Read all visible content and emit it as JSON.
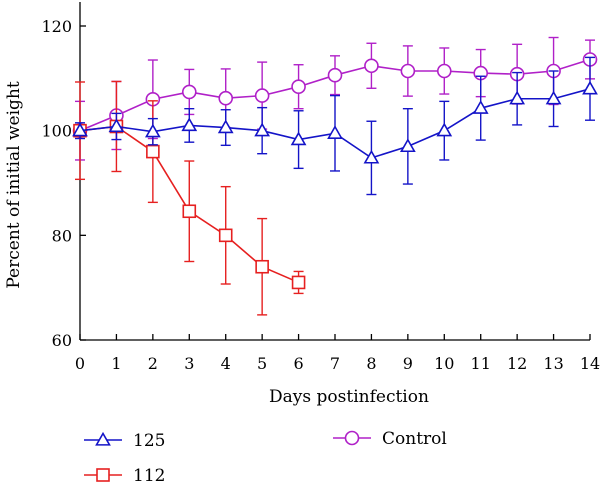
{
  "chart_data": {
    "type": "line",
    "title": "",
    "xlabel": "Days postinfection",
    "ylabel": "Percent of initial weight",
    "xlim": [
      0,
      14
    ],
    "ylim": [
      60,
      120
    ],
    "xticks": [
      0,
      1,
      2,
      3,
      4,
      5,
      6,
      7,
      8,
      9,
      10,
      11,
      12,
      13,
      14
    ],
    "yticks": [
      60,
      80,
      100,
      120
    ],
    "grid": false,
    "legend": "bottom",
    "series": [
      {
        "name": "125",
        "color": "#1414c8",
        "marker": "triangle",
        "x": [
          0,
          1,
          2,
          3,
          4,
          5,
          6,
          7,
          8,
          9,
          10,
          11,
          12,
          13,
          14
        ],
        "y": [
          100,
          100.8,
          99.8,
          101,
          100.6,
          100,
          98.3,
          99.5,
          94.8,
          97,
          100,
          104.3,
          106.1,
          106.1,
          108
        ],
        "err": [
          1.5,
          2.5,
          2.5,
          3.2,
          3.4,
          4.4,
          5.5,
          7.2,
          7,
          7.2,
          5.6,
          6.1,
          5,
          5.3,
          6
        ]
      },
      {
        "name": "112",
        "color": "#e62020",
        "marker": "square",
        "x": [
          0,
          1,
          2,
          3,
          4,
          5,
          6
        ],
        "y": [
          100,
          100.8,
          96,
          84.6,
          80,
          74,
          71
        ],
        "err": [
          9.3,
          8.6,
          9.7,
          9.6,
          9.3,
          9.2,
          2.1
        ]
      },
      {
        "name": "Control",
        "color": "#b020c8",
        "marker": "circle",
        "x": [
          0,
          1,
          2,
          3,
          4,
          5,
          6,
          7,
          8,
          9,
          10,
          11,
          12,
          13,
          14
        ],
        "y": [
          100,
          102.9,
          106,
          107.4,
          106.2,
          106.7,
          108.4,
          110.6,
          112.4,
          111.4,
          111.4,
          111,
          110.8,
          111.4,
          113.6
        ],
        "err": [
          5.6,
          6.5,
          7.5,
          4.3,
          5.6,
          6.4,
          4.2,
          3.7,
          4.3,
          4.8,
          4.4,
          4.5,
          5.7,
          6.4,
          3.7
        ]
      }
    ]
  }
}
